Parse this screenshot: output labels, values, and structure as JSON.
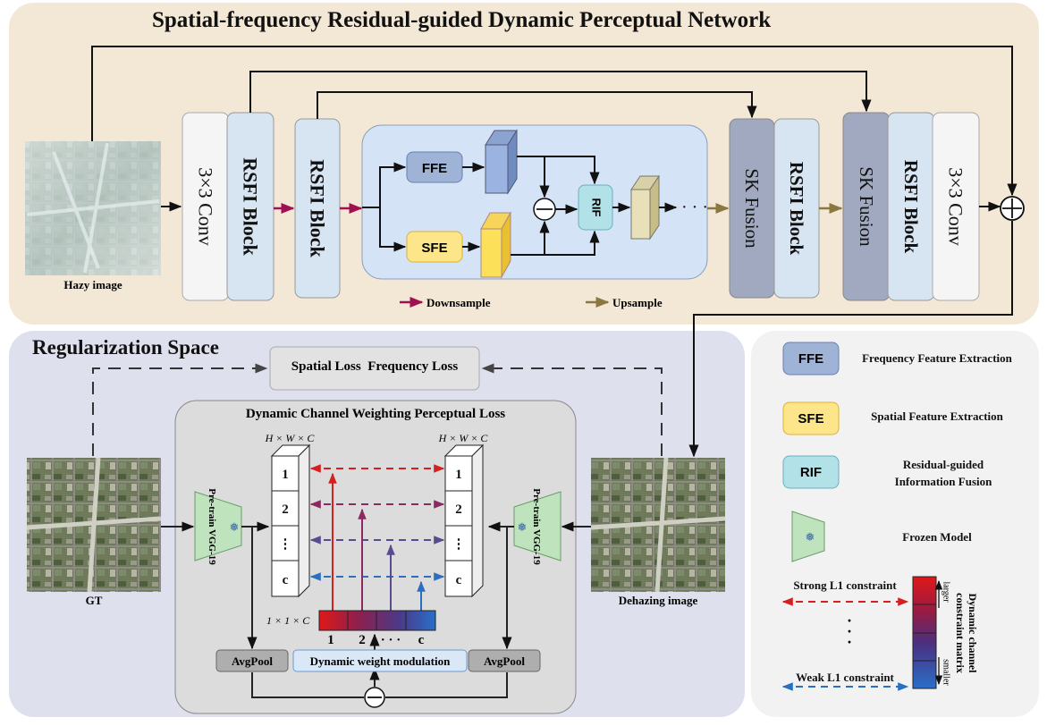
{
  "top": {
    "title": "Spatial-frequency Residual-guided Dynamic Perceptual  Network",
    "input_label": "Hazy image",
    "conv_in": "3×3 Conv",
    "rsfi_1": "RSFI Block",
    "rsfi_2": "RSFI Block",
    "ffe": "FFE",
    "sfe": "SFE",
    "rif": "RIF",
    "sk_1": "SK Fusion",
    "rsfi_3": "RSFI  Block",
    "sk_2": "SK Fusion",
    "rsfi_4": "RSFI Block",
    "conv_out": "3×3 Conv",
    "downsample": "Downsample",
    "upsample": "Upsample"
  },
  "reg": {
    "title": "Regularization Space",
    "losses": "Spatial Loss  Frequency Loss",
    "dcw_title": "Dynamic Channel Weighting Perceptual Loss",
    "gt_label": "GT",
    "dehazing_label": "Dehazing image",
    "vgg_left": "Pre-train VGG-19",
    "vgg_right": "Pre-train VGG-19",
    "dim_left": "H × W × C",
    "dim_right": "H × W × C",
    "stack_labels": [
      "1",
      "2",
      "⋮",
      "c"
    ],
    "vec_dim": "1 × 1 × C",
    "vec_labels": [
      "1",
      "2",
      "· · ·",
      "c"
    ],
    "avgpool_left": "AvgPool",
    "avgpool_right": "AvgPool",
    "dwm": "Dynamic weight modulation"
  },
  "legend": {
    "items": [
      {
        "key": "FFE",
        "text": "Frequency Feature Extraction"
      },
      {
        "key": "SFE",
        "text": "Spatial Feature Extraction"
      },
      {
        "key": "RIF",
        "text": "Residual-guided Information Fusion"
      },
      {
        "key": "",
        "text": "Frozen Model"
      }
    ],
    "strong": "Strong L1 constraint",
    "weak": "Weak L1 constraint",
    "larger": "larger",
    "smaller": "smaller",
    "matrix": "Dynamic channel constraint matrix"
  },
  "colors": {
    "top_bg": "#f3e8d6",
    "reg_bg": "#dfe0ee",
    "legend_bg": "#f2f2f2",
    "block_blue": "#d7e4f2",
    "sk_gray": "#a0a9bf",
    "ffe": "#9fb3d6",
    "sfe": "#fde68a",
    "rif": "#b2e1e8",
    "frozen": "#bfe3bd",
    "downsample": "#a01050",
    "upsample": "#8a7840",
    "red": "#d62020",
    "blue": "#2a6fc0"
  }
}
